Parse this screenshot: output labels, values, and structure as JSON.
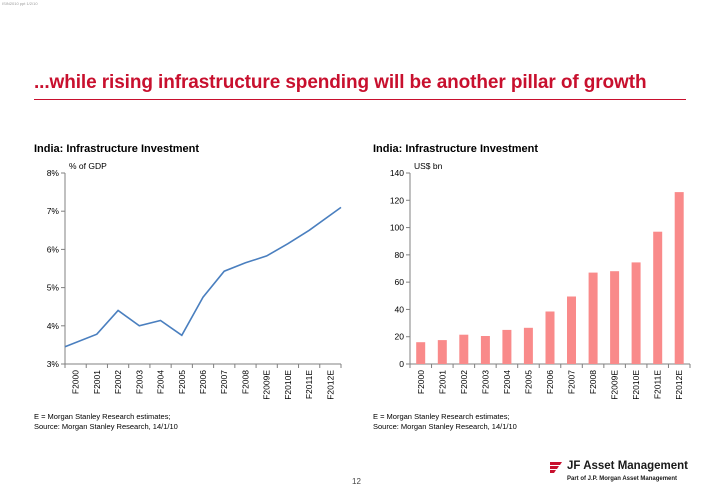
{
  "header": {
    "stamp": "ISIN2010 ppt 1/2/10",
    "title": "...while rising infrastructure spending will be another pillar of growth"
  },
  "notes": {
    "left_line1": "E = Morgan Stanley Research estimates;",
    "left_line2": "Source: Morgan Stanley Research, 14/1/10",
    "right_line1": "E = Morgan Stanley Research estimates;",
    "right_line2": "Source: Morgan Stanley Research, 14/1/10"
  },
  "footer": {
    "page_number": "12",
    "brand": "JF Asset Management",
    "tagline": "Part of J.P. Morgan Asset Management"
  },
  "colors": {
    "accent": "#c8102e",
    "line": "#4a7fbf",
    "bar": "#f98a8a",
    "axis": "#808080"
  },
  "chart_data": [
    {
      "type": "line",
      "title": "India: Infrastructure Investment",
      "ylabel": "% of GDP",
      "categories": [
        "F2000",
        "F2001",
        "F2002",
        "F2003",
        "F2004",
        "F2005",
        "F2006",
        "F2007",
        "F2008",
        "F2009E",
        "F2010E",
        "F2011E",
        "F2012E"
      ],
      "values": [
        3.45,
        3.78,
        4.4,
        4.0,
        4.14,
        3.75,
        4.75,
        5.43,
        5.65,
        5.83,
        6.15,
        6.5,
        7.1
      ],
      "ylim": [
        3,
        8
      ],
      "yticks": [
        "3%",
        "4%",
        "5%",
        "6%",
        "7%",
        "8%"
      ]
    },
    {
      "type": "bar",
      "title": "India: Infrastructure Investment",
      "ylabel": "US$ bn",
      "categories": [
        "F2000",
        "F2001",
        "F2002",
        "F2003",
        "F2004",
        "F2005",
        "F2006",
        "F2007",
        "F2008",
        "F2009E",
        "F2010E",
        "F2011E",
        "F2012E"
      ],
      "values": [
        16,
        17.5,
        21.5,
        20.5,
        25,
        26.5,
        38.5,
        49.5,
        67,
        68,
        74.5,
        97,
        126
      ],
      "ylim": [
        0,
        140
      ],
      "yticks": [
        "0",
        "20",
        "40",
        "60",
        "80",
        "100",
        "120",
        "140"
      ]
    }
  ]
}
